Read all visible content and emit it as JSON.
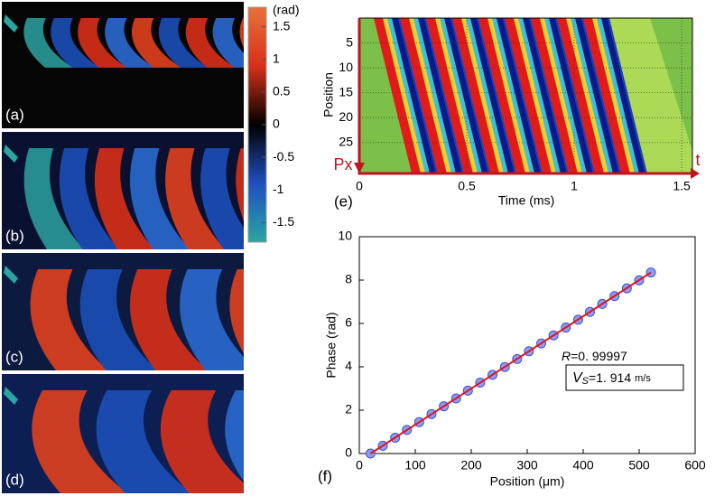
{
  "image_labels": [
    "(a)",
    "(b)",
    "(c)",
    "(d)"
  ],
  "chart_data": [
    {
      "type": "colorbar",
      "label": "(rad)",
      "ylim": [
        -1.8,
        1.8
      ],
      "yticks": [
        1.5,
        1,
        0.5,
        0,
        -0.5,
        -1,
        -1.5
      ],
      "colors": [
        "#2aa6a0",
        "#1f4fc0",
        "#000000",
        "#d8301a",
        "#e8703a"
      ]
    },
    {
      "type": "heatmap",
      "panel_label": "(e)",
      "xlabel": "Time (ms)",
      "ylabel": "Position",
      "xlim": [
        0,
        1.55
      ],
      "ylim": [
        0,
        31.2
      ],
      "y_inverted": true,
      "xticks": [
        0,
        0.5,
        1,
        1.5
      ],
      "yticks": [
        5,
        10,
        15,
        20,
        25
      ],
      "grid": true,
      "annotations": {
        "start": "Px",
        "end": "t"
      },
      "annotation_color": "#c0141e"
    },
    {
      "type": "scatter",
      "panel_label": "(f)",
      "xlabel": "Position (μm)",
      "ylabel": "Phase (rad)",
      "xlim": [
        0,
        600
      ],
      "ylim": [
        0,
        10
      ],
      "xticks": [
        0,
        100,
        200,
        300,
        400,
        500,
        600
      ],
      "yticks": [
        0,
        2,
        4,
        6,
        8,
        10
      ],
      "x": [
        20,
        42,
        64,
        85,
        107,
        129,
        151,
        173,
        194,
        216,
        238,
        260,
        282,
        303,
        325,
        347,
        369,
        391,
        412,
        434,
        456,
        478,
        500,
        521
      ],
      "values": [
        0,
        0.36,
        0.73,
        1.09,
        1.45,
        1.82,
        2.18,
        2.54,
        2.9,
        3.27,
        3.63,
        3.99,
        4.36,
        4.72,
        5.08,
        5.45,
        5.81,
        6.17,
        6.53,
        6.9,
        7.26,
        7.62,
        7.99,
        8.35
      ],
      "color": "#8c9ef0",
      "fit_line": {
        "x": [
          20,
          521
        ],
        "values": [
          0,
          8.35
        ],
        "color": "#e0141e"
      },
      "annotations": {
        "r_symbol": "R",
        "r_value": "=0. 99997",
        "v_symbol": "V",
        "v_subscript": "S",
        "v_value": "=1. 914",
        "v_unit": "m/s"
      }
    }
  ]
}
